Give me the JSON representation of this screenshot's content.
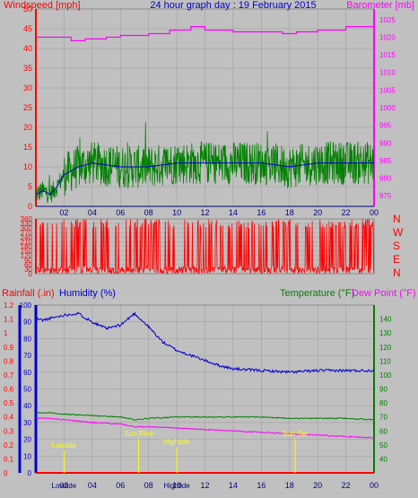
{
  "chart_data": [
    {
      "type": "line",
      "title": "24 hour graph day : 19 February 2015",
      "left_label": "Windspeed [mph]",
      "right_label": "Barometer [mb]",
      "x_ticks": [
        "02",
        "04",
        "06",
        "08",
        "10",
        "12",
        "14",
        "16",
        "18",
        "20",
        "22",
        "00"
      ],
      "y_left_ticks": [
        0,
        5,
        10,
        15,
        20,
        25,
        30,
        35,
        40,
        45,
        50
      ],
      "y_right_ticks": [
        975,
        980,
        985,
        990,
        995,
        1000,
        1005,
        1010,
        1015,
        1020,
        1025
      ],
      "ylim_left": [
        0,
        50
      ],
      "ylim_right": [
        972,
        1028
      ],
      "colors": {
        "wind": "#008000",
        "wind_avg": "#ff0000",
        "wind_mean": "#0000cc",
        "barometer": "#ff00ff",
        "left_axis": "#ff0000",
        "right_axis": "#ff00ff"
      },
      "series": [
        {
          "name": "Barometer",
          "x": [
            0,
            1,
            2.5,
            3.5,
            5,
            6,
            8,
            9.5,
            11,
            12,
            14,
            16,
            17.5,
            18.5,
            20,
            22,
            24
          ],
          "values": [
            1020,
            1020,
            1019,
            1019.5,
            1020,
            1020.5,
            1021,
            1022,
            1023,
            1022,
            1021.5,
            1021.5,
            1021,
            1021.5,
            1022,
            1023,
            1023
          ]
        },
        {
          "name": "Windspeed",
          "x": [
            0,
            0.5,
            1,
            1.5,
            2,
            3,
            4,
            6,
            8,
            10,
            12,
            14,
            16,
            18,
            20,
            22,
            24
          ],
          "values": [
            3,
            4,
            3,
            5,
            8,
            10,
            11,
            10,
            10,
            11,
            11,
            11,
            11,
            10,
            11,
            11,
            11
          ]
        }
      ]
    },
    {
      "type": "bar",
      "left_ticks": [
        0,
        30,
        60,
        90,
        120,
        150,
        180,
        210,
        240,
        270,
        300,
        330,
        360
      ],
      "right_labels": [
        "N",
        "W",
        "S",
        "E",
        "N"
      ],
      "ylim": [
        0,
        360
      ],
      "colors": {
        "direction": "#ff0000"
      }
    },
    {
      "type": "line",
      "rain_label": "Rainfall (.in)",
      "humidity_label": "Humidity (%)",
      "temp_label": "Temperature (°F)",
      "dew_label": "Dew Point (°F)",
      "x_ticks": [
        "02",
        "04",
        "06",
        "08",
        "10",
        "12",
        "14",
        "16",
        "18",
        "20",
        "22",
        "00"
      ],
      "rain_ticks": [
        "0",
        "0.1",
        "0.2",
        "0.3",
        "0.4",
        "0.5",
        "0.6",
        "0.7",
        "0.8",
        "0.9",
        "1",
        "1.1",
        "1.2"
      ],
      "humidity_ticks": [
        0,
        10,
        20,
        30,
        40,
        50,
        60,
        70,
        80,
        90,
        100
      ],
      "temp_ticks": [
        40,
        50,
        60,
        70,
        80,
        90,
        100,
        110,
        120,
        130,
        140
      ],
      "humidity_ylim": [
        0,
        100
      ],
      "temp_ylim": [
        30,
        150
      ],
      "colors": {
        "rain": "#ff0000",
        "humidity": "#0000cc",
        "temperature": "#008000",
        "dew_point": "#ff00ff",
        "markers": "#ffff00"
      },
      "series": [
        {
          "name": "Humidity",
          "x": [
            0,
            0.5,
            1,
            2,
            3,
            4,
            5,
            6,
            7,
            8,
            9,
            10,
            11,
            12,
            13,
            14,
            16,
            18,
            20,
            22,
            24
          ],
          "values": [
            92,
            91,
            92,
            94,
            95,
            90,
            86,
            88,
            95,
            87,
            78,
            73,
            70,
            67,
            64,
            62,
            61,
            60,
            61,
            61,
            61
          ]
        },
        {
          "name": "Temperature",
          "x": [
            0,
            1,
            2,
            4,
            6,
            7,
            8,
            10,
            12,
            14,
            16,
            18,
            20,
            22,
            24
          ],
          "values": [
            73,
            73,
            72,
            71,
            70,
            68,
            69,
            70,
            70,
            70,
            70,
            69,
            69,
            69,
            68
          ]
        },
        {
          "name": "Dew Point",
          "x": [
            0,
            1,
            2,
            4,
            6,
            7,
            8,
            10,
            12,
            14,
            16,
            18,
            20,
            22,
            24
          ],
          "values": [
            69,
            69,
            68,
            66,
            65,
            63,
            63,
            62,
            61,
            60,
            59,
            58,
            57,
            56,
            55
          ]
        }
      ],
      "markers": [
        {
          "label": "Lowtide",
          "hour": 2.0,
          "ypos": 0.85
        },
        {
          "label": "Sun Rise",
          "hour": 7.3,
          "ypos": 0.78
        },
        {
          "label": "Hightide",
          "hour": 10.0,
          "ypos": 0.83
        },
        {
          "label": "Sun Set",
          "hour": 18.4,
          "ypos": 0.78
        }
      ],
      "bottom_x_labels": [
        {
          "text": "Lowtide",
          "hour": 2.0
        },
        {
          "text": "Hightide",
          "hour": 10.0
        }
      ]
    }
  ]
}
